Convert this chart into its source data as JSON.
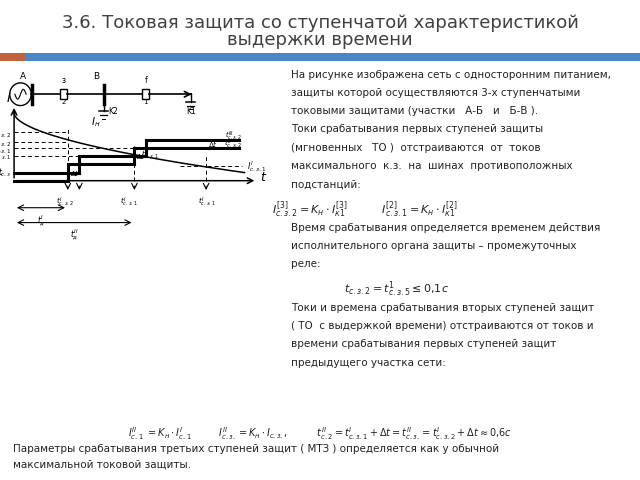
{
  "title_line1": "3.6. Токовая защита со ступенчатой характеристикой",
  "title_line2": "выдержки времени",
  "title_fontsize": 13,
  "title_color": "#404040",
  "bg_color": "#ffffff",
  "bar_color_left": "#c0623a",
  "bar_color_right": "#4a86c8",
  "text1": [
    "На рисунке изображена сеть с односторонним питанием,",
    "защиты которой осуществляются 3-х ступенчатыми",
    "токовыми защитами (участки   А-Б   и   Б-В ).",
    "Токи срабатывания первых ступеней защиты",
    "(мгновенных   ТО )  отстраиваются  от  токов",
    "максимального  к.з.  на  шинах  противоположных",
    "подстанций:"
  ],
  "text2": [
    "Время срабатывания определяется временем действия",
    "исполнительного органа защиты – промежуточных",
    "реле:"
  ],
  "text3": [
    "Токи и времена срабатывания вторых ступеней защит",
    "( ТО  с выдержкой времени) отстраиваются от токов и",
    "времени срабатывания первых ступеней защит",
    "предыдущего участка сети:"
  ],
  "text4": "Параметры срабатывания третьих ступеней защит ( МТЗ ) определяется как у обычной",
  "text5": "максимальной токовой защиты.",
  "lh": 0.038,
  "text_fontsize": 7.5,
  "formula_fontsize": 8.0
}
